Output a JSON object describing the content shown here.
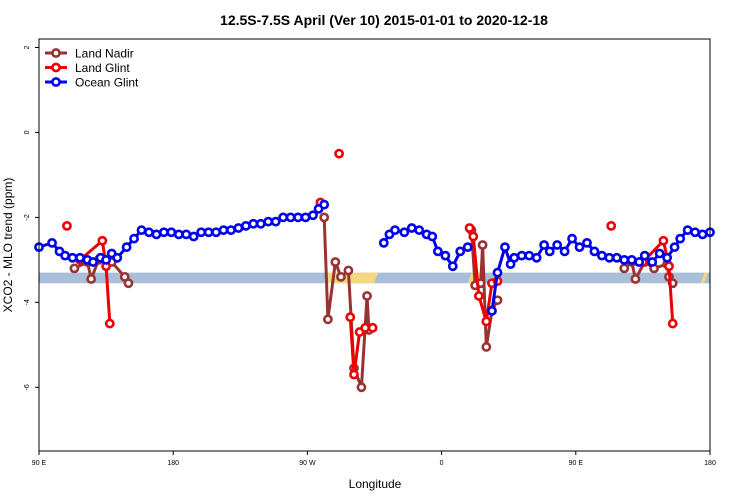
{
  "chart_data": {
    "type": "line",
    "title": "12.5S-7.5S April (Ver 10)   2015-01-01 to 2020-12-18",
    "xlabel": "Longitude",
    "ylabel": "XCO2 - MLO trend (ppm)",
    "xlim": [
      90,
      450
    ],
    "ylim": [
      -7.5,
      2.2
    ],
    "x_tick_values": [
      90,
      162,
      234,
      306,
      378,
      450
    ],
    "x_tick_labels": [
      "90 E",
      "180",
      "90 W",
      "0",
      "90 E",
      "180"
    ],
    "y_tick_values": [
      2,
      0,
      -2,
      -4,
      -6
    ],
    "y_tick_labels": [
      "2",
      "0",
      "-2",
      "-4",
      "-6"
    ],
    "grid": false,
    "legend_position": "top-left",
    "land_band": {
      "y_range": [
        -3.55,
        -3.3
      ],
      "ocean_color": "#a9bfd9",
      "land_color": "#f5d77e",
      "land_segments": [
        [
          243,
          273
        ],
        [
          320,
          330
        ],
        [
          445,
          450
        ]
      ]
    },
    "series": [
      {
        "name": "Land Nadir",
        "color": "#993333",
        "segments": [
          [
            [
              109,
              -3.2
            ],
            [
              116,
              -3.05
            ],
            [
              118,
              -3.45
            ],
            [
              122,
              -3.0
            ],
            [
              129,
              -3.05
            ],
            [
              136,
              -3.4
            ],
            [
              138,
              -3.55
            ]
          ],
          [
            [
              243,
              -2.0
            ],
            [
              245,
              -4.4
            ],
            [
              249,
              -3.05
            ],
            [
              252,
              -3.4
            ],
            [
              256,
              -3.25
            ],
            [
              259,
              -5.55
            ],
            [
              263,
              -6.0
            ],
            [
              266,
              -3.85
            ],
            [
              267,
              -4.65
            ]
          ],
          [
            [
              322,
              -2.3
            ],
            [
              324,
              -3.6
            ],
            [
              327,
              -3.55
            ],
            [
              328,
              -2.65
            ],
            [
              330,
              -5.05
            ],
            [
              333,
              -4.2
            ],
            [
              336,
              -3.95
            ]
          ],
          [
            [
              404,
              -3.2
            ],
            [
              408,
              -3.05
            ],
            [
              410,
              -3.45
            ],
            [
              415,
              -3.05
            ],
            [
              420,
              -3.2
            ],
            [
              427,
              -3.1
            ],
            [
              428,
              -3.4
            ],
            [
              430,
              -3.55
            ]
          ]
        ]
      },
      {
        "name": "Land Glint",
        "color": "#ee0000",
        "segments": [
          [
            [
              105,
              -2.2
            ]
          ],
          [
            [
              112,
              -3.0
            ],
            [
              124,
              -2.55
            ],
            [
              126,
              -3.15
            ],
            [
              128,
              -4.5
            ]
          ],
          [
            [
              241,
              -1.65
            ]
          ],
          [
            [
              251,
              -0.5
            ]
          ],
          [
            [
              257,
              -4.35
            ],
            [
              259,
              -5.7
            ],
            [
              262,
              -4.7
            ],
            [
              265,
              -4.6
            ],
            [
              269,
              -4.6
            ]
          ],
          [
            [
              321,
              -2.25
            ],
            [
              323,
              -2.45
            ],
            [
              326,
              -3.85
            ],
            [
              330,
              -4.45
            ],
            [
              333,
              -3.55
            ],
            [
              336,
              -3.5
            ]
          ],
          [
            [
              397,
              -2.2
            ]
          ],
          [
            [
              414,
              -3.05
            ],
            [
              425,
              -2.55
            ],
            [
              428,
              -3.15
            ],
            [
              430,
              -4.5
            ]
          ]
        ]
      },
      {
        "name": "Ocean Glint",
        "color": "#0000ee",
        "segments": [
          [
            [
              90,
              -2.7
            ],
            [
              97,
              -2.6
            ],
            [
              101,
              -2.8
            ],
            [
              104,
              -2.9
            ],
            [
              108,
              -2.95
            ],
            [
              112,
              -2.95
            ],
            [
              116,
              -3.0
            ],
            [
              119,
              -3.05
            ],
            [
              123,
              -2.95
            ],
            [
              126,
              -3.0
            ],
            [
              129,
              -2.85
            ],
            [
              132,
              -2.95
            ],
            [
              137,
              -2.7
            ],
            [
              141,
              -2.5
            ],
            [
              145,
              -2.3
            ],
            [
              149,
              -2.35
            ],
            [
              153,
              -2.4
            ],
            [
              157,
              -2.35
            ],
            [
              161,
              -2.35
            ],
            [
              165,
              -2.4
            ],
            [
              169,
              -2.4
            ],
            [
              173,
              -2.45
            ],
            [
              177,
              -2.35
            ],
            [
              181,
              -2.35
            ],
            [
              185,
              -2.35
            ],
            [
              189,
              -2.3
            ],
            [
              193,
              -2.3
            ],
            [
              197,
              -2.25
            ],
            [
              201,
              -2.2
            ],
            [
              205,
              -2.15
            ],
            [
              209,
              -2.15
            ],
            [
              213,
              -2.1
            ],
            [
              217,
              -2.1
            ],
            [
              221,
              -2.0
            ],
            [
              225,
              -2.0
            ],
            [
              229,
              -2.0
            ],
            [
              233,
              -2.0
            ],
            [
              237,
              -1.95
            ],
            [
              240,
              -1.8
            ],
            [
              243,
              -1.7
            ]
          ],
          [
            [
              275,
              -2.6
            ],
            [
              278,
              -2.4
            ],
            [
              281,
              -2.3
            ],
            [
              286,
              -2.35
            ],
            [
              290,
              -2.25
            ],
            [
              294,
              -2.3
            ],
            [
              298,
              -2.4
            ],
            [
              301,
              -2.45
            ],
            [
              304,
              -2.8
            ],
            [
              308,
              -2.9
            ],
            [
              312,
              -3.15
            ],
            [
              316,
              -2.8
            ],
            [
              320,
              -2.7
            ]
          ],
          [
            [
              333,
              -4.2
            ],
            [
              336,
              -3.3
            ],
            [
              340,
              -2.7
            ],
            [
              343,
              -3.1
            ],
            [
              345,
              -2.95
            ],
            [
              349,
              -2.9
            ],
            [
              353,
              -2.9
            ],
            [
              357,
              -2.95
            ],
            [
              361,
              -2.65
            ],
            [
              364,
              -2.8
            ],
            [
              368,
              -2.65
            ],
            [
              372,
              -2.8
            ],
            [
              376,
              -2.5
            ],
            [
              380,
              -2.7
            ],
            [
              384,
              -2.6
            ],
            [
              388,
              -2.8
            ],
            [
              392,
              -2.9
            ],
            [
              396,
              -2.95
            ],
            [
              400,
              -2.95
            ],
            [
              404,
              -3.0
            ],
            [
              408,
              -3.0
            ],
            [
              412,
              -3.05
            ],
            [
              415,
              -2.9
            ],
            [
              419,
              -3.05
            ],
            [
              423,
              -2.85
            ],
            [
              427,
              -2.95
            ],
            [
              431,
              -2.7
            ],
            [
              434,
              -2.5
            ],
            [
              438,
              -2.3
            ],
            [
              442,
              -2.35
            ],
            [
              446,
              -2.4
            ],
            [
              450,
              -2.35
            ]
          ]
        ]
      }
    ]
  }
}
